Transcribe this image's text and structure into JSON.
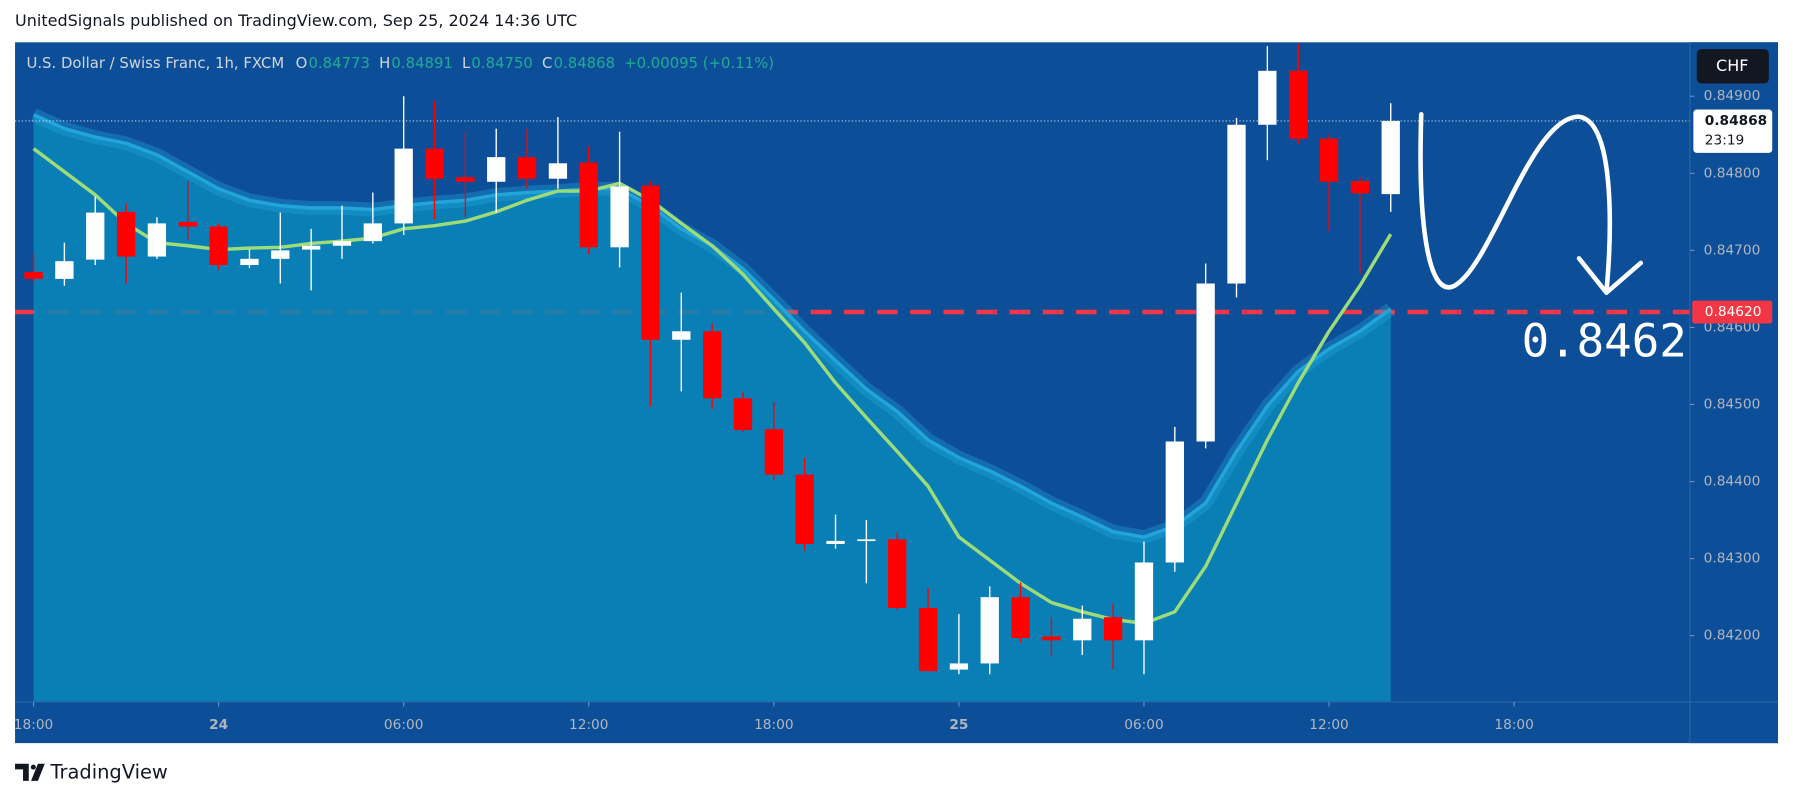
{
  "header": {
    "text": "UnitedSignals published on TradingView.com, Sep 25, 2024 14:36 UTC"
  },
  "footer": {
    "brand": "TradingView"
  },
  "chart_data": {
    "type": "candlestick",
    "title": "U.S. Dollar / Swiss Franc, 1h, FXCM",
    "ohlc_legend": [
      {
        "key": "O",
        "value": "0.84773"
      },
      {
        "key": "H",
        "value": "0.84891"
      },
      {
        "key": "L",
        "value": "0.84750"
      },
      {
        "key": "C",
        "value": "0.84868"
      }
    ],
    "change": "+0.00095 (+0.11%)",
    "currency": "CHF",
    "x": [
      0,
      1,
      2,
      3,
      4,
      5,
      6,
      7,
      8,
      9,
      10,
      11,
      12,
      13,
      14,
      15,
      16,
      17,
      18,
      19,
      20,
      21,
      22,
      23,
      24,
      25,
      26,
      27,
      28,
      29,
      30,
      31,
      32,
      33,
      34,
      35,
      36,
      37,
      38,
      39,
      40,
      41,
      42,
      43,
      44
    ],
    "open": [
      0.84672,
      0.84663,
      0.84688,
      0.8475,
      0.84692,
      0.84737,
      0.84731,
      0.84681,
      0.84689,
      0.84701,
      0.84706,
      0.84712,
      0.84735,
      0.84832,
      0.84795,
      0.84789,
      0.84821,
      0.84793,
      0.84814,
      0.84704,
      0.84784,
      0.84584,
      0.84595,
      0.84508,
      0.84468,
      0.84409,
      0.84319,
      0.84324,
      0.84325,
      0.84236,
      0.84156,
      0.84164,
      0.8425,
      0.84199,
      0.84194,
      0.84224,
      0.84194,
      0.84295,
      0.84452,
      0.84657,
      0.84863,
      0.84933,
      0.84845,
      0.8479,
      0.84773
    ],
    "high": [
      0.84695,
      0.8471,
      0.8477,
      0.84761,
      0.84743,
      0.8479,
      0.84735,
      0.84701,
      0.84749,
      0.84728,
      0.84758,
      0.84775,
      0.849,
      0.84894,
      0.84854,
      0.84858,
      0.84858,
      0.84873,
      0.84835,
      0.84854,
      0.8479,
      0.84645,
      0.84605,
      0.84516,
      0.84503,
      0.84431,
      0.84357,
      0.8435,
      0.84334,
      0.84262,
      0.84228,
      0.84264,
      0.84269,
      0.84224,
      0.84239,
      0.84242,
      0.84322,
      0.84471,
      0.84683,
      0.84872,
      0.84965,
      0.84968,
      0.8485,
      0.84795,
      0.84891
    ],
    "low": [
      0.84657,
      0.84654,
      0.84681,
      0.84657,
      0.84689,
      0.84713,
      0.84675,
      0.84677,
      0.84657,
      0.84648,
      0.84689,
      0.84709,
      0.8472,
      0.8474,
      0.84743,
      0.84749,
      0.8478,
      0.8478,
      0.84695,
      0.84678,
      0.84497,
      0.84517,
      0.84494,
      0.84464,
      0.84402,
      0.8431,
      0.84313,
      0.84268,
      0.84233,
      0.84153,
      0.8415,
      0.8415,
      0.84191,
      0.84173,
      0.84175,
      0.84156,
      0.8415,
      0.84283,
      0.84443,
      0.84639,
      0.84817,
      0.84838,
      0.84725,
      0.84669,
      0.8475
    ],
    "close": [
      0.84663,
      0.84686,
      0.84749,
      0.84692,
      0.84735,
      0.84731,
      0.84681,
      0.84689,
      0.847,
      0.84706,
      0.84712,
      0.84735,
      0.84832,
      0.84793,
      0.84789,
      0.84821,
      0.84793,
      0.84813,
      0.84704,
      0.84783,
      0.84584,
      0.84595,
      0.84508,
      0.84467,
      0.84409,
      0.84319,
      0.84323,
      0.84325,
      0.84236,
      0.84154,
      0.84164,
      0.8425,
      0.84197,
      0.84194,
      0.84222,
      0.84194,
      0.84295,
      0.84452,
      0.84657,
      0.84863,
      0.84933,
      0.84845,
      0.84789,
      0.84774,
      0.84868
    ],
    "up_color": "#ffffff",
    "down_color": "#ff0000",
    "overlays": [
      {
        "color": "#22a6d9",
        "fill": "#0a86b8",
        "values": [
          0.84876,
          0.84858,
          0.84847,
          0.84839,
          0.84824,
          0.84802,
          0.8478,
          0.84765,
          0.84758,
          0.84755,
          0.84755,
          0.84753,
          0.84758,
          0.84762,
          0.84765,
          0.84772,
          0.84775,
          0.84777,
          0.8478,
          0.8478,
          0.84758,
          0.84728,
          0.84706,
          0.84676,
          0.84636,
          0.84595,
          0.84557,
          0.8452,
          0.84491,
          0.84454,
          0.84431,
          0.84414,
          0.84394,
          0.84372,
          0.84354,
          0.84335,
          0.84328,
          0.84342,
          0.84372,
          0.84439,
          0.84498,
          0.84543,
          0.84572,
          0.84595,
          0.84624
        ]
      },
      {
        "color": "#9ddc78",
        "values": [
          0.84832,
          0.84802,
          0.84772,
          0.84735,
          0.8471,
          0.84706,
          0.84701,
          0.84703,
          0.84704,
          0.84709,
          0.84712,
          0.84716,
          0.84728,
          0.84732,
          0.84738,
          0.8475,
          0.84765,
          0.84777,
          0.84777,
          0.84787,
          0.84765,
          0.84735,
          0.84706,
          0.84669,
          0.84624,
          0.8458,
          0.84528,
          0.84483,
          0.84439,
          0.84394,
          0.84328,
          0.84298,
          0.84268,
          0.84243,
          0.84231,
          0.84221,
          0.84216,
          0.84231,
          0.8429,
          0.84372,
          0.84454,
          0.84528,
          0.84595,
          0.84654,
          0.84721
        ]
      }
    ],
    "xlim": [
      -0.6,
      53.7
    ],
    "xticks": [
      {
        "value": 0,
        "label": "18:00"
      },
      {
        "value": 6,
        "label": "24"
      },
      {
        "value": 12,
        "label": "06:00"
      },
      {
        "value": 18,
        "label": "12:00"
      },
      {
        "value": 24,
        "label": "18:00"
      },
      {
        "value": 30,
        "label": "25"
      },
      {
        "value": 36,
        "label": "06:00"
      },
      {
        "value": 42,
        "label": "12:00"
      },
      {
        "value": 48,
        "label": "18:00"
      }
    ],
    "ylim": [
      0.84114,
      0.8497
    ],
    "yticks": [
      {
        "value": 0.849,
        "label": "0.84900"
      },
      {
        "value": 0.848,
        "label": "0.84800"
      },
      {
        "value": 0.847,
        "label": "0.84700"
      },
      {
        "value": 0.846,
        "label": "0.84600"
      },
      {
        "value": 0.845,
        "label": "0.84500"
      },
      {
        "value": 0.844,
        "label": "0.84400"
      },
      {
        "value": 0.843,
        "label": "0.84300"
      },
      {
        "value": 0.842,
        "label": "0.84200"
      }
    ],
    "last_price": {
      "value": 0.84868,
      "label": "0.84868"
    },
    "countdown": "23:19",
    "hline": {
      "value": 0.8462,
      "label": "0.84620",
      "color": "#f23645"
    },
    "annotation": "0.8462"
  }
}
